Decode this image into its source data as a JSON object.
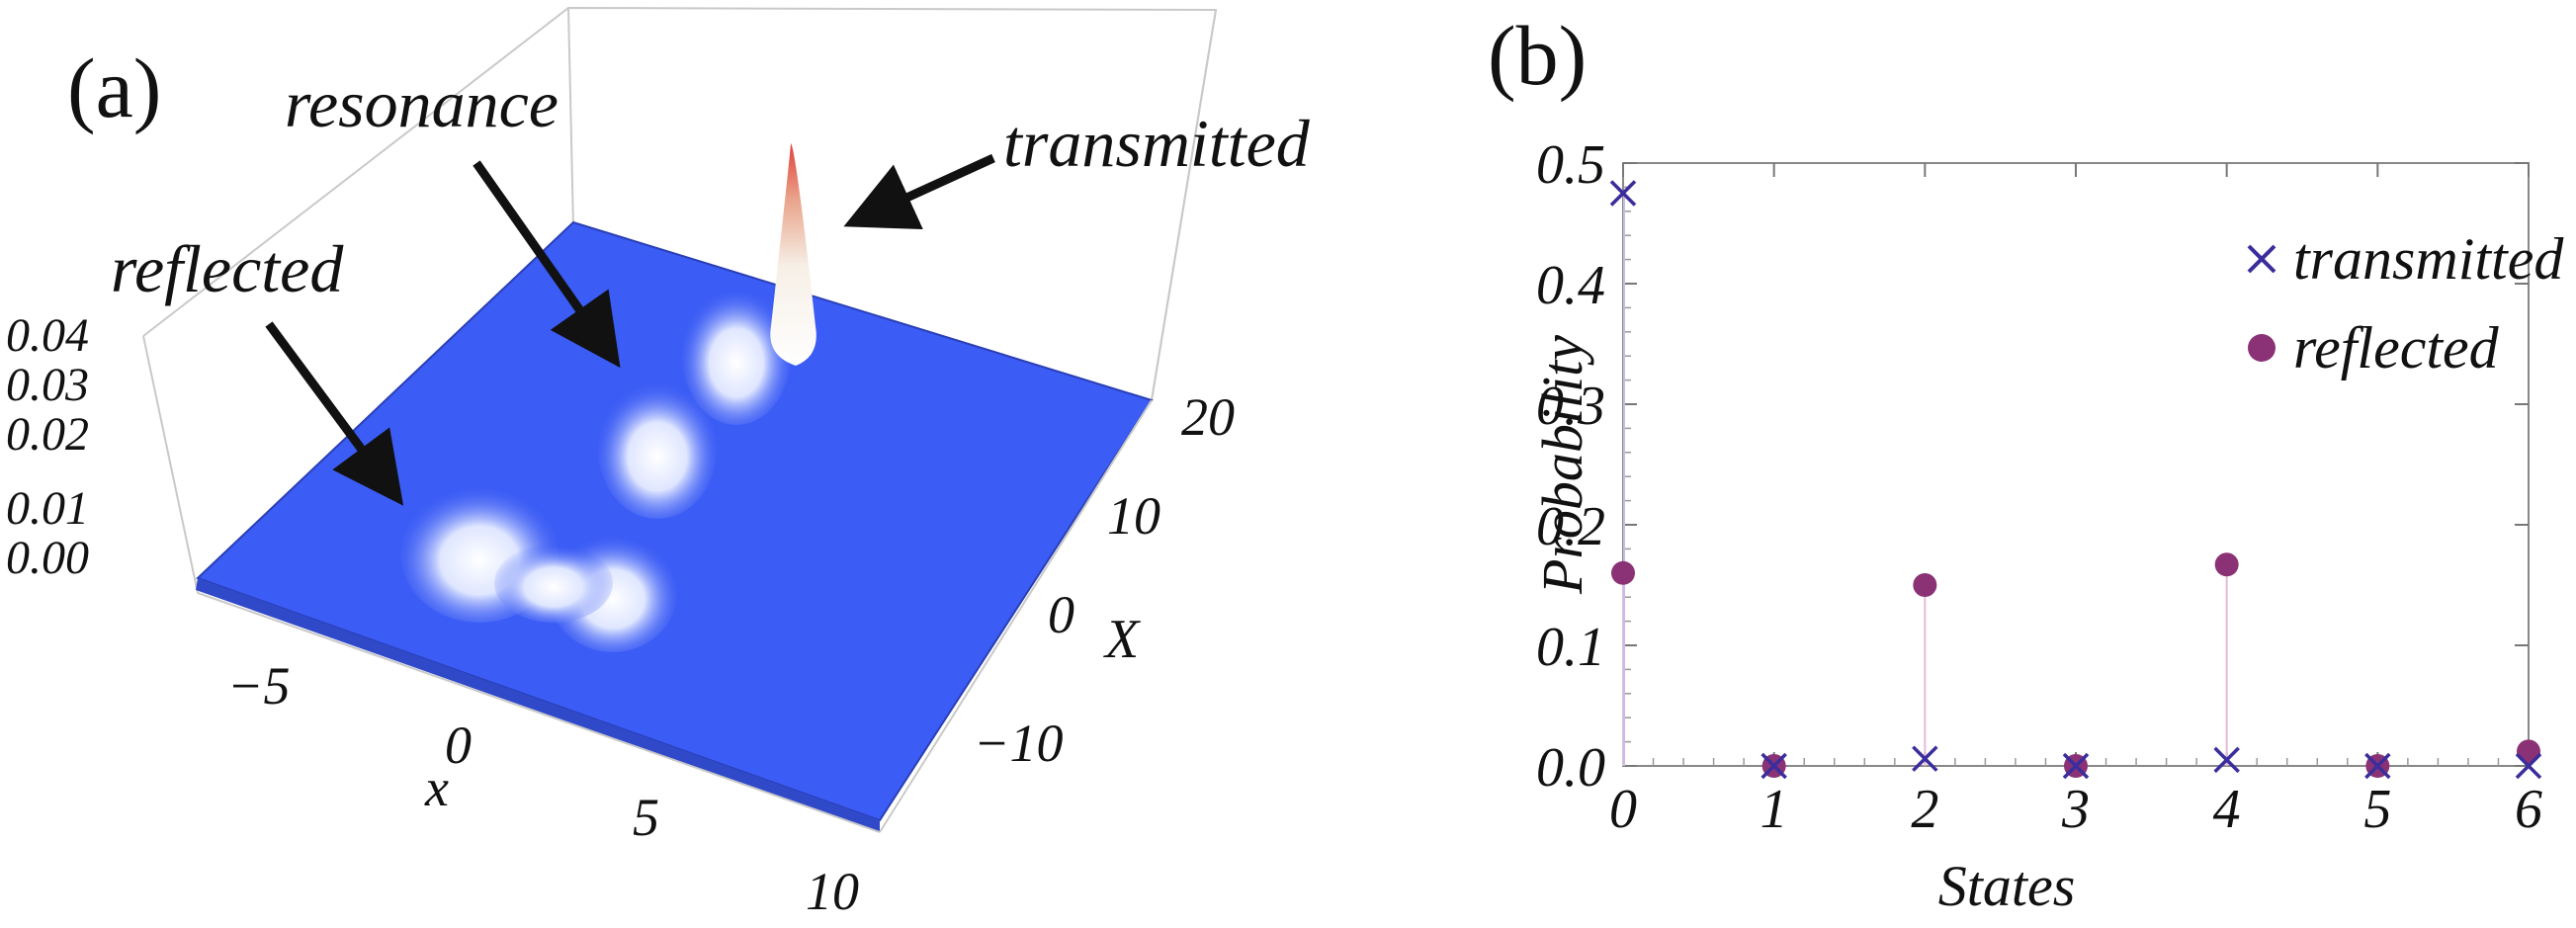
{
  "panel_a": {
    "label": "(a)",
    "annotations": {
      "resonance": "resonance",
      "transmitted": "transmitted",
      "reflected": "reflected"
    },
    "z_ticks": [
      "0.04",
      "0.03",
      "0.02",
      "0.01",
      "0.00"
    ],
    "x_ticks": [
      "−5",
      "0",
      "5",
      "10"
    ],
    "x_label": "x",
    "X_ticks": [
      "20",
      "10",
      "0",
      "−10"
    ],
    "X_label": "X",
    "colors": {
      "surface": "#3b5cf5",
      "peak_tip": "#e0403a",
      "peak_white": "#ffffff"
    }
  },
  "chart_data": {
    "type": "scatter",
    "panel_label": "(b)",
    "xlabel": "States",
    "ylabel": "Probability",
    "xlim": [
      0,
      6
    ],
    "ylim": [
      0,
      0.5
    ],
    "x_ticks": [
      "0",
      "1",
      "2",
      "3",
      "4",
      "5",
      "6"
    ],
    "y_ticks": [
      "0.0",
      "0.1",
      "0.2",
      "0.3",
      "0.4",
      "0.5"
    ],
    "grid": false,
    "legend_position": "top-right",
    "series": [
      {
        "name": "transmitted",
        "marker": "x",
        "color": "#3a2d9c",
        "x": [
          0,
          1,
          2,
          3,
          4,
          5,
          6
        ],
        "y": [
          0.475,
          0.0,
          0.006,
          0.0,
          0.005,
          0.0,
          0.0
        ]
      },
      {
        "name": "reflected",
        "marker": "circle",
        "color": "#8a3275",
        "x": [
          0,
          1,
          2,
          3,
          4,
          5,
          6
        ],
        "y": [
          0.16,
          0.0,
          0.15,
          0.0,
          0.167,
          0.0,
          0.012
        ]
      }
    ]
  }
}
